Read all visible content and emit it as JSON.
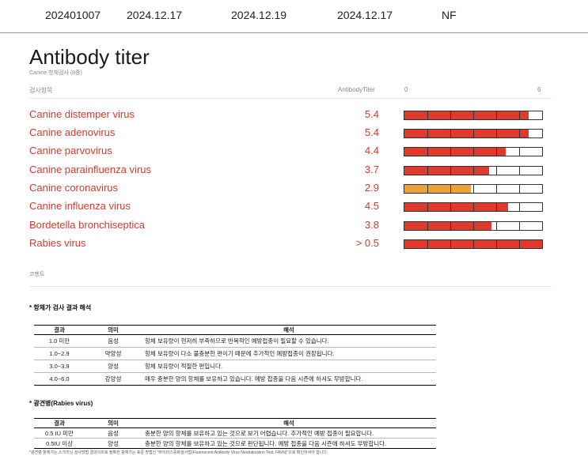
{
  "top_row": [
    "202401007",
    "2024.12.17",
    "2024.12.19",
    "2024.12.17",
    "NF"
  ],
  "section": {
    "title": "Antibody titer",
    "subtitle": "Canine 항체검사 (8종)"
  },
  "columns": {
    "item": "검사항목",
    "titer": "AntibodyTiter",
    "scale_min": "0",
    "scale_max": "6"
  },
  "scale_max_value": 6,
  "tests": [
    {
      "name": "Canine distemper virus",
      "value": "5.4",
      "level": 5.4,
      "color": "#e03a2c"
    },
    {
      "name": "Canine adenovirus",
      "value": "5.4",
      "level": 5.4,
      "color": "#e03a2c"
    },
    {
      "name": "Canine parvovirus",
      "value": "4.4",
      "level": 4.4,
      "color": "#e03a2c"
    },
    {
      "name": "Canine parainfluenza virus",
      "value": "3.7",
      "level": 3.7,
      "color": "#e03a2c"
    },
    {
      "name": "Canine coronavirus",
      "value": "2.9",
      "level": 2.9,
      "color": "#eba23a"
    },
    {
      "name": "Canine influenza virus",
      "value": "4.5",
      "level": 4.5,
      "color": "#e03a2c"
    },
    {
      "name": "Bordetella bronchiseptica",
      "value": "3.8",
      "level": 3.8,
      "color": "#e03a2c"
    },
    {
      "name": "Rabies virus",
      "value": "> 0.5",
      "level": 6,
      "color": "#e03a2c"
    }
  ],
  "comment_label": "코멘트",
  "interpretation": {
    "title": "* 항체가 검사 결과 해석",
    "headers": [
      "결과",
      "의미",
      "해석"
    ],
    "rows": [
      [
        "1.0 미만",
        "음성",
        "항체 보유량이 현저히 부족하므로 반복적인 예방접종이 필요할 수 있습니다."
      ],
      [
        "1.0~2.9",
        "약양성",
        "항체 보유량이 다소 불충분한 편이기 때문에 추가적인 예방접종이 권장됩니다."
      ],
      [
        "3.0~3.9",
        "양성",
        "항체 보유량이 적절한 편입니다."
      ],
      [
        "4.0~6.0",
        "강양성",
        "매우 충분한 양의 항체를 보유하고 있습니다. 예방 접종을 다음 시즌에 하셔도 무방합니다."
      ]
    ]
  },
  "rabies": {
    "title": "* 광견병(Rabies virus)",
    "headers": [
      "결과",
      "의미",
      "해석"
    ],
    "rows": [
      [
        "0.5 IU 미만",
        "음성",
        "충분한 양의 항체를 보유하고 있는 것으로 보기 어렵습니다. 추가적인 예방 접종이 필요합니다."
      ],
      [
        "0.5IU 이상",
        "양성",
        "충분한 양의 항체를 보유하고 있는 것으로 판단됩니다. 예방 접종을 다음 시즌에 하셔도 무방합니다."
      ]
    ],
    "footnote": "*광견병 항체가는 스크리닝 검사방법 결과이므로 정확한 항체가는 표준 방법인 \"바이러스중화검사법(Fluorescent Antibody Virus Neutralization Test, FAVN)\"으로 확인하셔야 합니다."
  }
}
